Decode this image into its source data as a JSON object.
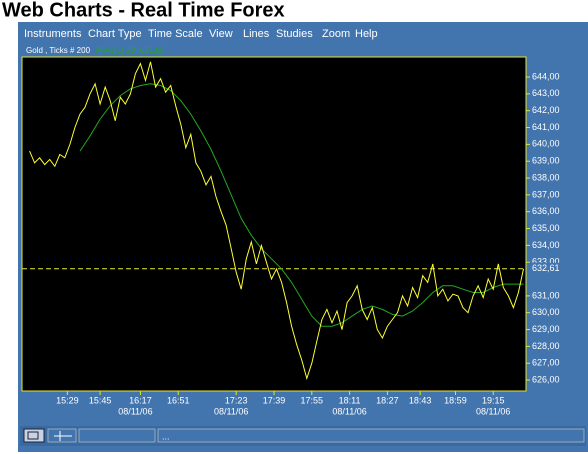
{
  "page": {
    "title": "Web Charts - Real Time Forex",
    "menu": [
      "Instruments",
      "Chart Type",
      "Time Scale",
      "View",
      "Lines",
      "Studies",
      "Zoom",
      "Help"
    ],
    "status_text": "..."
  },
  "chart_data": {
    "type": "line",
    "series": [
      {
        "name": "Gold , Ticks # 200",
        "color": "#ffff33",
        "x": [
          3,
          5,
          7,
          9,
          11,
          13,
          15,
          17,
          19,
          21,
          23,
          25,
          27,
          29,
          31,
          33,
          35,
          37,
          39,
          41,
          43,
          45,
          47,
          49,
          51,
          53,
          55,
          57,
          59,
          61,
          63,
          65,
          67,
          69,
          71,
          73,
          75,
          77,
          79,
          81,
          83,
          85,
          87,
          89,
          91,
          93,
          95,
          97,
          99,
          101,
          103,
          105,
          107,
          109,
          111,
          113,
          115,
          117,
          119,
          121,
          123,
          125,
          127,
          129,
          131,
          133,
          135,
          137,
          139,
          141,
          143,
          145,
          147,
          149,
          151,
          153,
          155,
          157,
          159,
          161,
          163,
          165,
          167,
          169,
          171,
          173,
          175,
          177,
          179,
          181,
          183,
          185,
          187,
          189,
          191,
          193,
          195,
          197,
          199
        ],
        "values": [
          639.6,
          638.9,
          639.2,
          638.8,
          639.1,
          638.7,
          639.4,
          639.2,
          640.0,
          641.0,
          641.8,
          642.2,
          643.0,
          643.6,
          642.4,
          643.4,
          642.6,
          641.4,
          642.8,
          642.4,
          643.0,
          644.2,
          644.8,
          643.8,
          644.9,
          643.4,
          643.9,
          643.1,
          643.5,
          642.3,
          641.2,
          639.8,
          640.6,
          638.9,
          638.4,
          637.6,
          638.1,
          636.9,
          636.0,
          635.2,
          633.8,
          632.4,
          631.4,
          633.2,
          634.2,
          632.9,
          634.0,
          633.0,
          632.0,
          632.6,
          631.8,
          630.6,
          629.2,
          628.1,
          627.2,
          626.1,
          627.0,
          628.3,
          629.6,
          630.2,
          629.4,
          630.1,
          629.0,
          630.6,
          631.0,
          631.6,
          630.2,
          629.6,
          630.3,
          629.0,
          628.5,
          629.2,
          629.6,
          630.0,
          631.0,
          630.4,
          631.5,
          630.9,
          632.2,
          631.8,
          632.9,
          631.0,
          631.4,
          630.7,
          631.1,
          631.0,
          630.3,
          630.0,
          631.0,
          631.6,
          630.9,
          632.0,
          631.4,
          632.9,
          631.5,
          631.0,
          630.3,
          631.2,
          632.6
        ]
      },
      {
        "name": "MVG(1) 20=631,65",
        "color": "#22aa22",
        "x": [
          23,
          27,
          31,
          35,
          39,
          43,
          47,
          51,
          55,
          59,
          63,
          67,
          71,
          75,
          79,
          83,
          87,
          91,
          95,
          99,
          103,
          107,
          111,
          115,
          119,
          123,
          127,
          131,
          135,
          139,
          143,
          147,
          151,
          155,
          159,
          163,
          167,
          171,
          175,
          179,
          183,
          187,
          191,
          195,
          199
        ],
        "values": [
          639.6,
          640.5,
          641.5,
          642.3,
          642.9,
          643.3,
          643.5,
          643.6,
          643.5,
          643.2,
          642.6,
          641.8,
          640.8,
          639.7,
          638.4,
          637.0,
          635.6,
          634.6,
          633.8,
          633.2,
          632.6,
          631.8,
          630.8,
          629.8,
          629.2,
          629.2,
          629.4,
          629.8,
          630.2,
          630.4,
          630.2,
          629.9,
          629.8,
          630.1,
          630.6,
          631.2,
          631.6,
          631.6,
          631.4,
          631.2,
          631.2,
          631.5,
          631.7,
          631.7,
          631.7
        ]
      }
    ],
    "current": {
      "value": 632.61,
      "label": "632,61"
    },
    "xlim": [
      0,
      200
    ],
    "ylim": [
      625.35,
      645.19
    ],
    "yticks": [
      {
        "value": 626,
        "label": "626,00"
      },
      {
        "value": 627,
        "label": "627,00"
      },
      {
        "value": 628,
        "label": "628,00"
      },
      {
        "value": 629,
        "label": "629,00"
      },
      {
        "value": 630,
        "label": "630,00"
      },
      {
        "value": 631,
        "label": "631,00"
      },
      {
        "value": 633,
        "label": "633,00"
      },
      {
        "value": 634,
        "label": "634,00"
      },
      {
        "value": 635,
        "label": "635,00"
      },
      {
        "value": 636,
        "label": "636,00"
      },
      {
        "value": 637,
        "label": "637,00"
      },
      {
        "value": 638,
        "label": "638,00"
      },
      {
        "value": 639,
        "label": "639,00"
      },
      {
        "value": 640,
        "label": "640,00"
      },
      {
        "value": 641,
        "label": "641,00"
      },
      {
        "value": 642,
        "label": "642,00"
      },
      {
        "value": 643,
        "label": "643,00"
      },
      {
        "value": 644,
        "label": "644,00"
      }
    ],
    "xticks": [
      {
        "value": 18,
        "label": "15:29"
      },
      {
        "value": 31,
        "label": "15:45"
      },
      {
        "value": 47,
        "label": "16:17"
      },
      {
        "value": 62,
        "label": "16:51"
      },
      {
        "value": 85,
        "label": "17:23"
      },
      {
        "value": 100,
        "label": "17:39"
      },
      {
        "value": 115,
        "label": "17:55"
      },
      {
        "value": 130,
        "label": "18:11"
      },
      {
        "value": 145,
        "label": "18:27"
      },
      {
        "value": 158,
        "label": "18:43"
      },
      {
        "value": 172,
        "label": "18:59"
      },
      {
        "value": 187,
        "label": "19:15"
      }
    ],
    "xdates": [
      {
        "value": 45,
        "label": "08/11/06"
      },
      {
        "value": 83,
        "label": "08/11/06"
      },
      {
        "value": 130,
        "label": "08/11/06"
      },
      {
        "value": 187,
        "label": "08/11/06"
      }
    ],
    "grid": false
  }
}
